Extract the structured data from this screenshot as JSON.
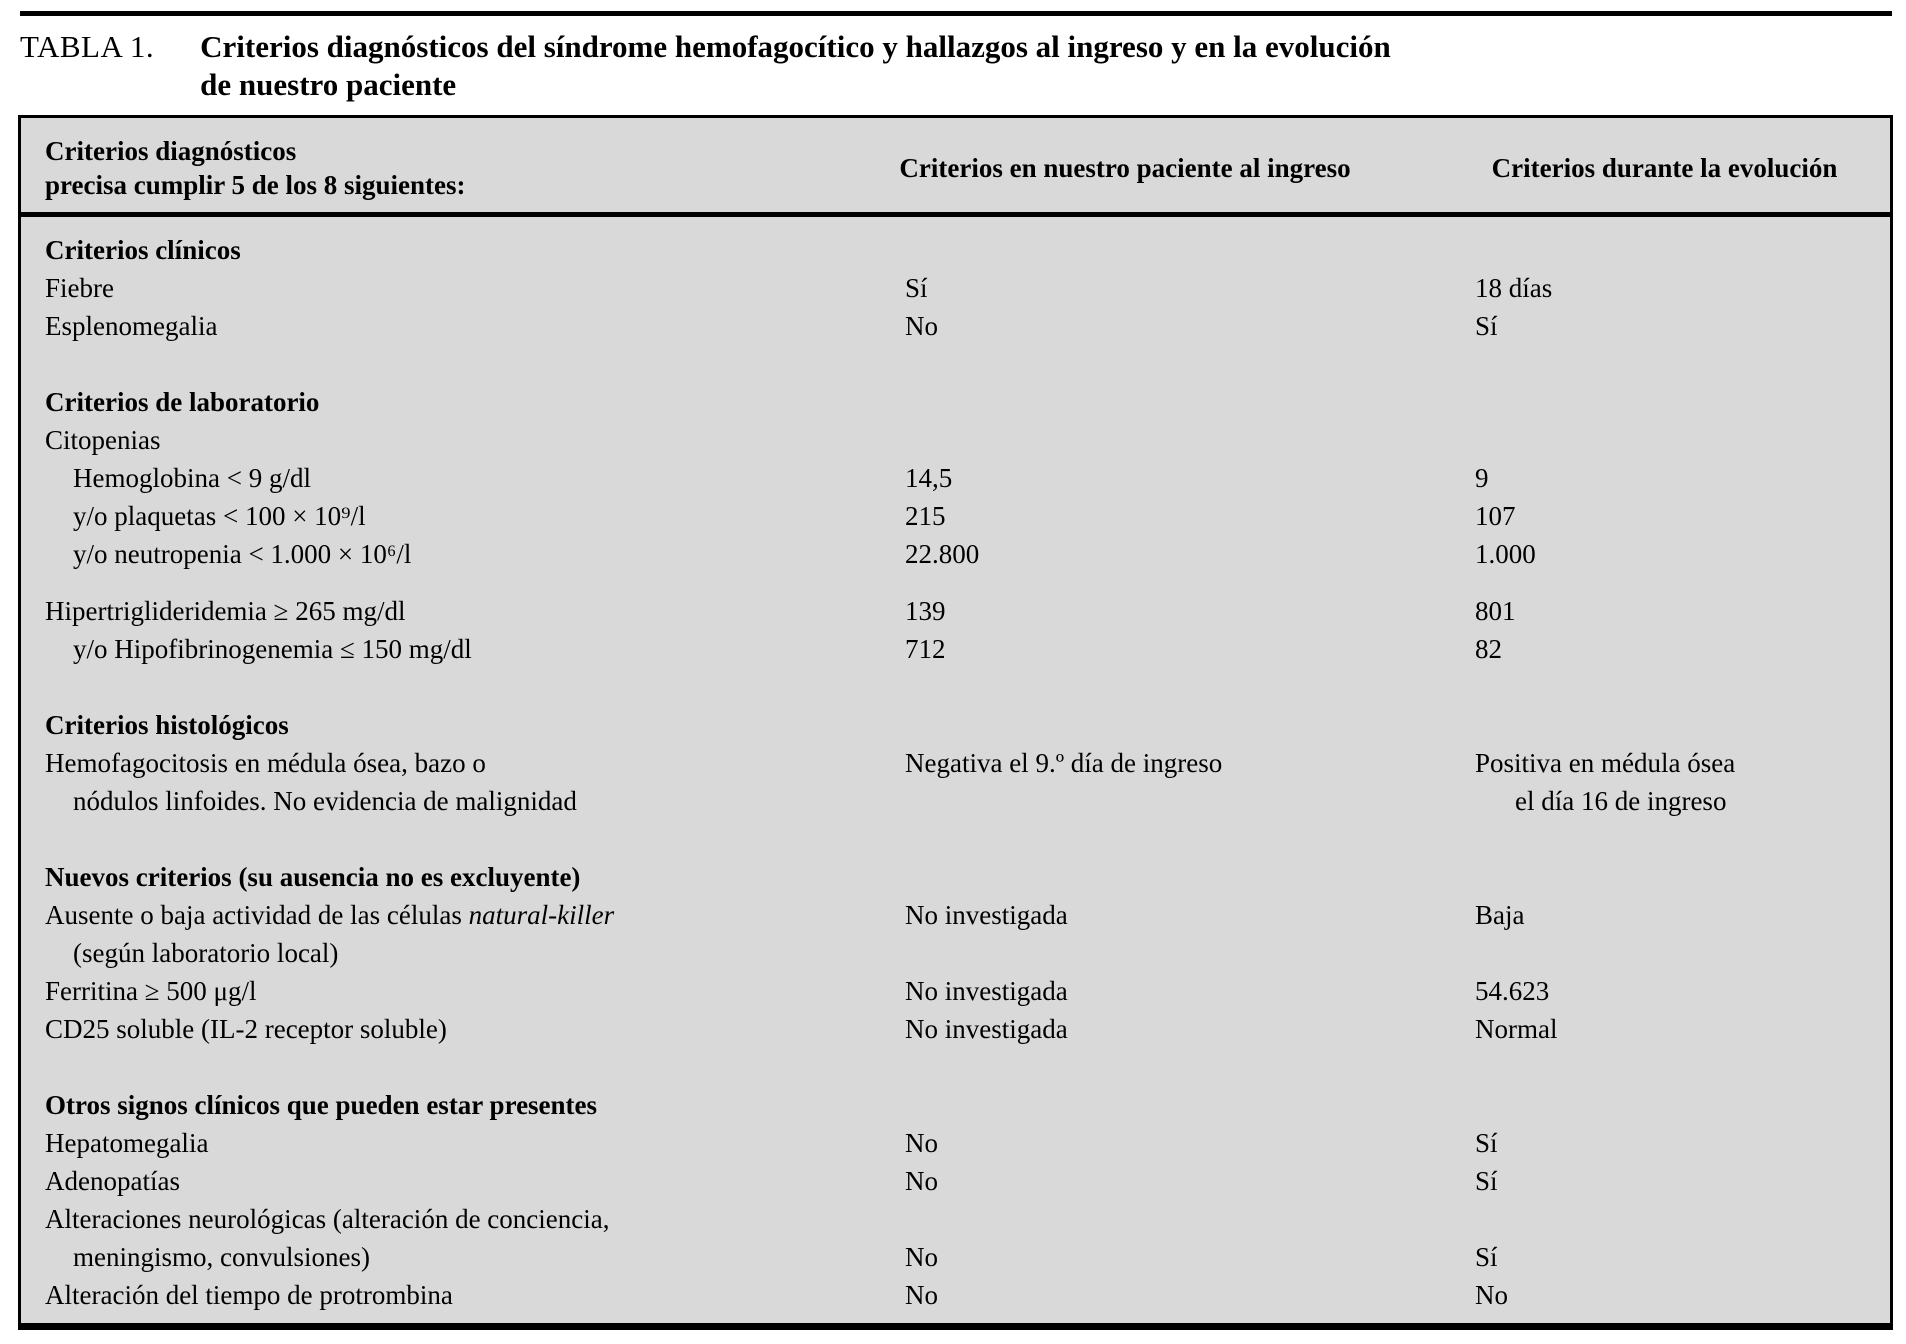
{
  "caption": {
    "label": "TABLA 1.",
    "title_line1": "Criterios diagnósticos del síndrome hemofagocítico y hallazgos al ingreso y en la evolución",
    "title_line2": "de nuestro paciente"
  },
  "colors": {
    "table_background": "#d9d9d9",
    "rule": "#000000",
    "text": "#000000"
  },
  "table": {
    "header": {
      "col1_line1": "Criterios diagnósticos",
      "col1_line2": "precisa cumplir 5 de los 8 siguientes:",
      "col2": "Criterios en nuestro paciente al ingreso",
      "col3": "Criterios durante la evolución"
    },
    "rows": [
      {
        "type": "section",
        "c1": "Criterios clínicos"
      },
      {
        "type": "row",
        "c1": "Fiebre",
        "c2": "Sí",
        "c3": "18 días"
      },
      {
        "type": "row",
        "c1": "Esplenomegalia",
        "c2": "No",
        "c3": "Sí"
      },
      {
        "type": "spacer"
      },
      {
        "type": "section",
        "c1": "Criterios de laboratorio"
      },
      {
        "type": "row",
        "c1": "Citopenias"
      },
      {
        "type": "row",
        "indent": true,
        "c1": "Hemoglobina < 9 g/dl",
        "c2": "14,5",
        "c3": "9"
      },
      {
        "type": "row",
        "indent": true,
        "c1": "y/o plaquetas < 100 × 10⁹/l",
        "c2": "215",
        "c3": "107"
      },
      {
        "type": "row",
        "indent": true,
        "c1": "y/o neutropenia < 1.000 × 10⁶/l",
        "c2": "22.800",
        "c3": "1.000"
      },
      {
        "type": "spacer_small"
      },
      {
        "type": "row",
        "c1": "Hipertriglideridemia ≥ 265 mg/dl",
        "c2": "139",
        "c3": "801"
      },
      {
        "type": "row",
        "indent": true,
        "c1": "y/o Hipofibrinogenemia ≤ 150 mg/dl",
        "c2": "712",
        "c3": "82"
      },
      {
        "type": "spacer"
      },
      {
        "type": "section",
        "c1": "Criterios histológicos"
      },
      {
        "type": "row",
        "c1": "Hemofagocitosis en médula ósea, bazo o",
        "c2": "Negativa el 9.º día de ingreso",
        "c3": "Positiva en médula ósea"
      },
      {
        "type": "row",
        "indent": true,
        "c1": "nódulos linfoides. No evidencia de malignidad",
        "c3": "el día 16 de ingreso",
        "c3_indent": true
      },
      {
        "type": "spacer"
      },
      {
        "type": "section",
        "c1": "Nuevos criterios (su ausencia no es excluyente)"
      },
      {
        "type": "row",
        "c1": "Ausente o baja actividad de las células ",
        "c1_italic": "natural-killer",
        "c2": "No investigada",
        "c3": "Baja"
      },
      {
        "type": "row",
        "indent": true,
        "c1": "(según laboratorio local)"
      },
      {
        "type": "row",
        "c1": "Ferritina ≥ 500 μg/l",
        "c2": "No investigada",
        "c3": "54.623"
      },
      {
        "type": "row",
        "c1": "CD25 soluble (IL-2 receptor soluble)",
        "c2": "No investigada",
        "c3": "Normal"
      },
      {
        "type": "spacer"
      },
      {
        "type": "section",
        "c1": "Otros signos clínicos que pueden estar presentes"
      },
      {
        "type": "row",
        "c1": "Hepatomegalia",
        "c2": "No",
        "c3": "Sí"
      },
      {
        "type": "row",
        "c1": "Adenopatías",
        "c2": "No",
        "c3": "Sí"
      },
      {
        "type": "row",
        "c1": "Alteraciones neurológicas (alteración de conciencia,"
      },
      {
        "type": "row",
        "indent": true,
        "c1": "meningismo, convulsiones)",
        "c2": "No",
        "c3": "Sí"
      },
      {
        "type": "row",
        "c1": "Alteración del tiempo de protrombina",
        "c2": "No",
        "c3": "No"
      }
    ]
  }
}
